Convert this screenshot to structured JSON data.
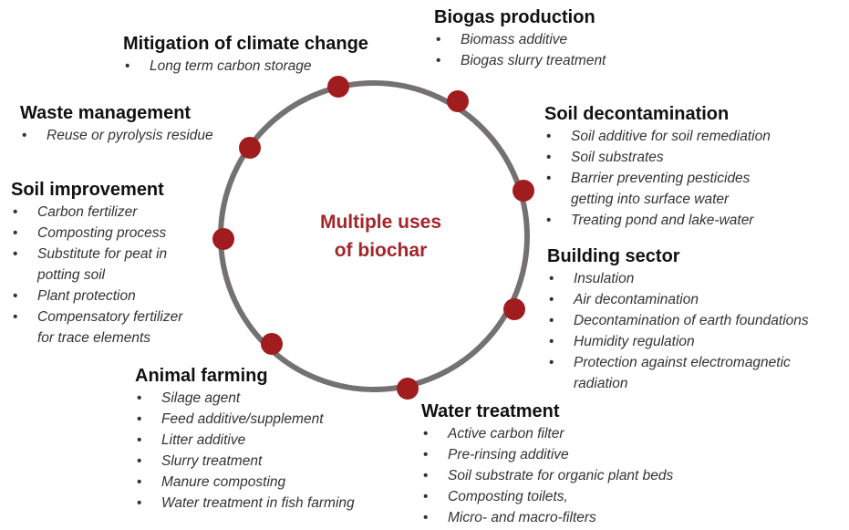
{
  "center_label": "Multiple uses\nof biochar",
  "groups": [
    {
      "title": "Biogas production",
      "items": [
        "Biomass additive",
        "Biogas slurry treatment"
      ]
    },
    {
      "title": "Mitigation of climate change",
      "items": [
        "Long term carbon storage"
      ]
    },
    {
      "title": "Waste management",
      "items": [
        "Reuse or pyrolysis residue"
      ]
    },
    {
      "title": "Soil improvement",
      "items": [
        "Carbon fertilizer",
        "Composting process",
        "Substitute for peat in\npotting soil",
        "Plant protection",
        "Compensatory fertilizer\nfor trace elements"
      ]
    },
    {
      "title": "Soil decontamination",
      "items": [
        "Soil additive for soil remediation",
        "Soil substrates",
        "Barrier preventing pesticides\ngetting into surface water",
        "Treating pond and lake-water"
      ]
    },
    {
      "title": "Building sector",
      "items": [
        "Insulation",
        "Air decontamination",
        "Decontamination of earth foundations",
        "Humidity regulation",
        "Protection against electromagnetic\nradiation"
      ]
    },
    {
      "title": "Animal farming",
      "items": [
        "Silage agent",
        "Feed additive/supplement",
        "Litter additive",
        "Slurry treatment",
        "Manure composting",
        "Water treatment in fish farming"
      ]
    },
    {
      "title": "Water treatment",
      "items": [
        "Active carbon filter",
        "Pre-rinsing additive",
        "Soil substrate for organic plant beds",
        "Composting toilets,",
        "Micro- and macro-filters"
      ]
    }
  ]
}
